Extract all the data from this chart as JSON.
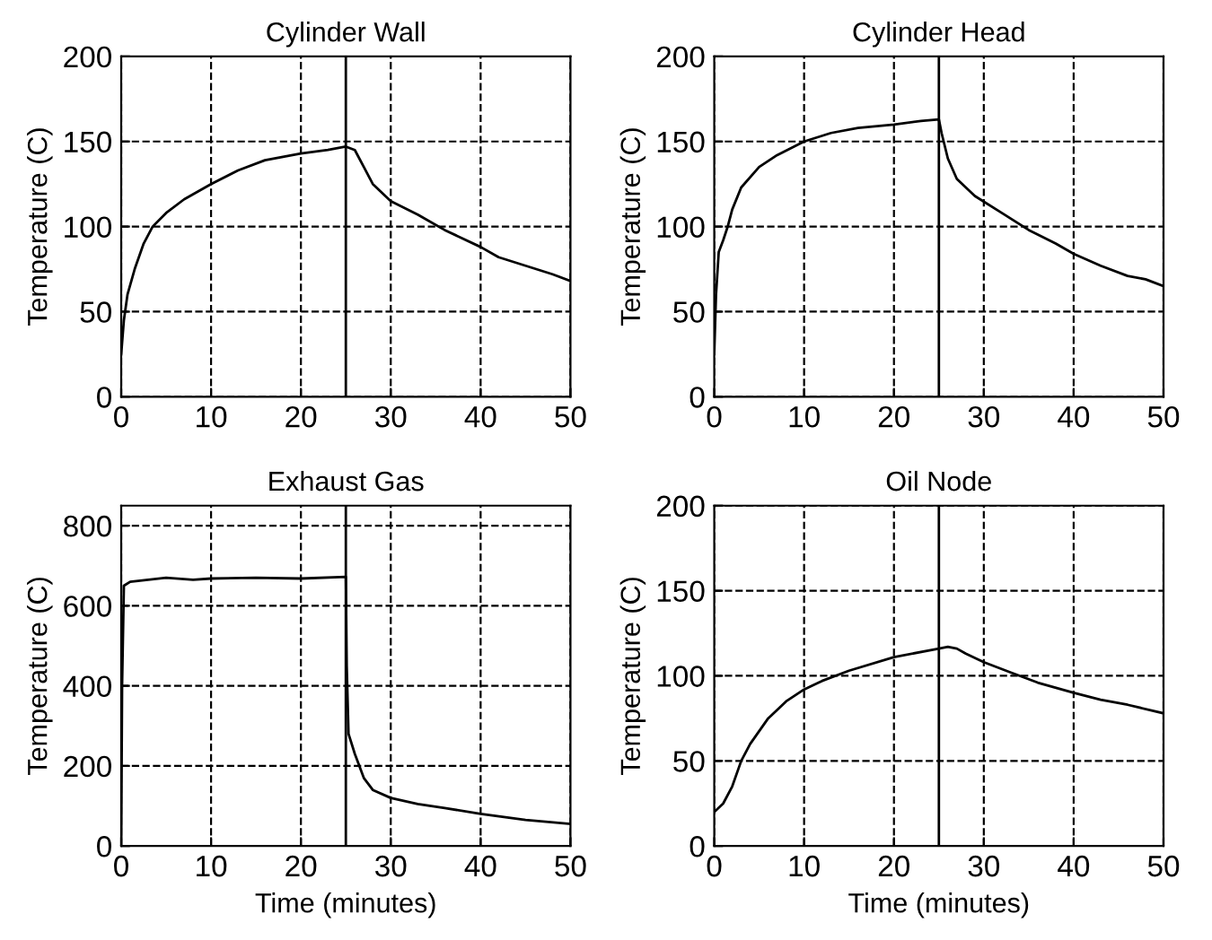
{
  "chart_data": [
    {
      "type": "line",
      "title": "Cylinder Wall",
      "ylabel": "Temperature (C)",
      "xlim": [
        0,
        50
      ],
      "xticks": [
        0,
        10,
        20,
        30,
        40,
        50
      ],
      "ylim": [
        0,
        200
      ],
      "yticks": [
        0,
        50,
        100,
        150,
        200
      ],
      "grid": true,
      "line_style": "solid",
      "ref_lines": [
        {
          "axis": "x",
          "value": 25,
          "color": "#000000",
          "line_style": "solid"
        }
      ],
      "series": [
        {
          "color": "#000000",
          "x": [
            0,
            0.3,
            0.7,
            1.5,
            2.5,
            3.5,
            5,
            7,
            10,
            13,
            16,
            18,
            20,
            23,
            25,
            26,
            27,
            28,
            30,
            33,
            36,
            40,
            42,
            45,
            48,
            50
          ],
          "values": [
            25,
            45,
            60,
            75,
            90,
            100,
            108,
            116,
            125,
            133,
            139,
            141,
            143,
            145,
            147,
            145,
            135,
            125,
            115,
            107,
            98,
            88,
            82,
            77,
            72,
            68
          ]
        }
      ]
    },
    {
      "type": "line",
      "title": "Cylinder Head",
      "ylabel": "Temperature (C)",
      "xlim": [
        0,
        50
      ],
      "xticks": [
        0,
        10,
        20,
        30,
        40,
        50
      ],
      "ylim": [
        0,
        200
      ],
      "yticks": [
        0,
        50,
        100,
        150,
        200
      ],
      "grid": true,
      "line_style": "solid",
      "ref_lines": [
        {
          "axis": "x",
          "value": 25,
          "color": "#000000",
          "line_style": "solid"
        }
      ],
      "series": [
        {
          "color": "#000000",
          "x": [
            0,
            0.2,
            0.5,
            1,
            1.5,
            2,
            3,
            5,
            7,
            10,
            13,
            16,
            20,
            23,
            25,
            25.3,
            26,
            27,
            29,
            32,
            35,
            38,
            40,
            43,
            46,
            48,
            50
          ],
          "values": [
            25,
            60,
            85,
            92,
            100,
            110,
            123,
            135,
            142,
            150,
            155,
            158,
            160,
            162,
            163,
            155,
            140,
            128,
            118,
            108,
            98,
            90,
            84,
            77,
            71,
            69,
            65
          ]
        }
      ]
    },
    {
      "type": "line",
      "title": "Exhaust Gas",
      "xlabel": "Time (minutes)",
      "ylabel": "Temperature (C)",
      "xlim": [
        0,
        50
      ],
      "xticks": [
        0,
        10,
        20,
        30,
        40,
        50
      ],
      "ylim": [
        0,
        850
      ],
      "yticks": [
        0,
        200,
        400,
        600,
        800
      ],
      "grid": true,
      "line_style": "solid",
      "ref_lines": [
        {
          "axis": "x",
          "value": 25,
          "color": "#000000",
          "line_style": "solid"
        }
      ],
      "series": [
        {
          "color": "#000000",
          "x": [
            0,
            0.1,
            0.3,
            1,
            3,
            5,
            8,
            10,
            15,
            20,
            25,
            25.1,
            25.3,
            26,
            27,
            28,
            30,
            33,
            36,
            40,
            45,
            50
          ],
          "values": [
            0,
            400,
            650,
            660,
            665,
            670,
            665,
            668,
            670,
            668,
            672,
            450,
            280,
            230,
            170,
            140,
            120,
            105,
            95,
            80,
            65,
            55
          ]
        }
      ]
    },
    {
      "type": "line",
      "title": "Oil Node",
      "xlabel": "Time (minutes)",
      "ylabel": "Temperature (C)",
      "xlim": [
        0,
        50
      ],
      "xticks": [
        0,
        10,
        20,
        30,
        40,
        50
      ],
      "ylim": [
        0,
        200
      ],
      "yticks": [
        0,
        50,
        100,
        150,
        200
      ],
      "grid": true,
      "line_style": "solid",
      "ref_lines": [
        {
          "axis": "x",
          "value": 25,
          "color": "#000000",
          "line_style": "solid"
        }
      ],
      "series": [
        {
          "color": "#000000",
          "x": [
            0,
            1,
            2,
            3,
            4,
            6,
            8,
            10,
            12,
            15,
            20,
            25,
            26,
            27,
            28,
            30,
            33,
            36,
            40,
            43,
            46,
            50
          ],
          "values": [
            20,
            25,
            35,
            50,
            60,
            75,
            85,
            92,
            97,
            103,
            111,
            116,
            117,
            116,
            113,
            108,
            102,
            96,
            90,
            86,
            83,
            78
          ]
        }
      ]
    }
  ]
}
